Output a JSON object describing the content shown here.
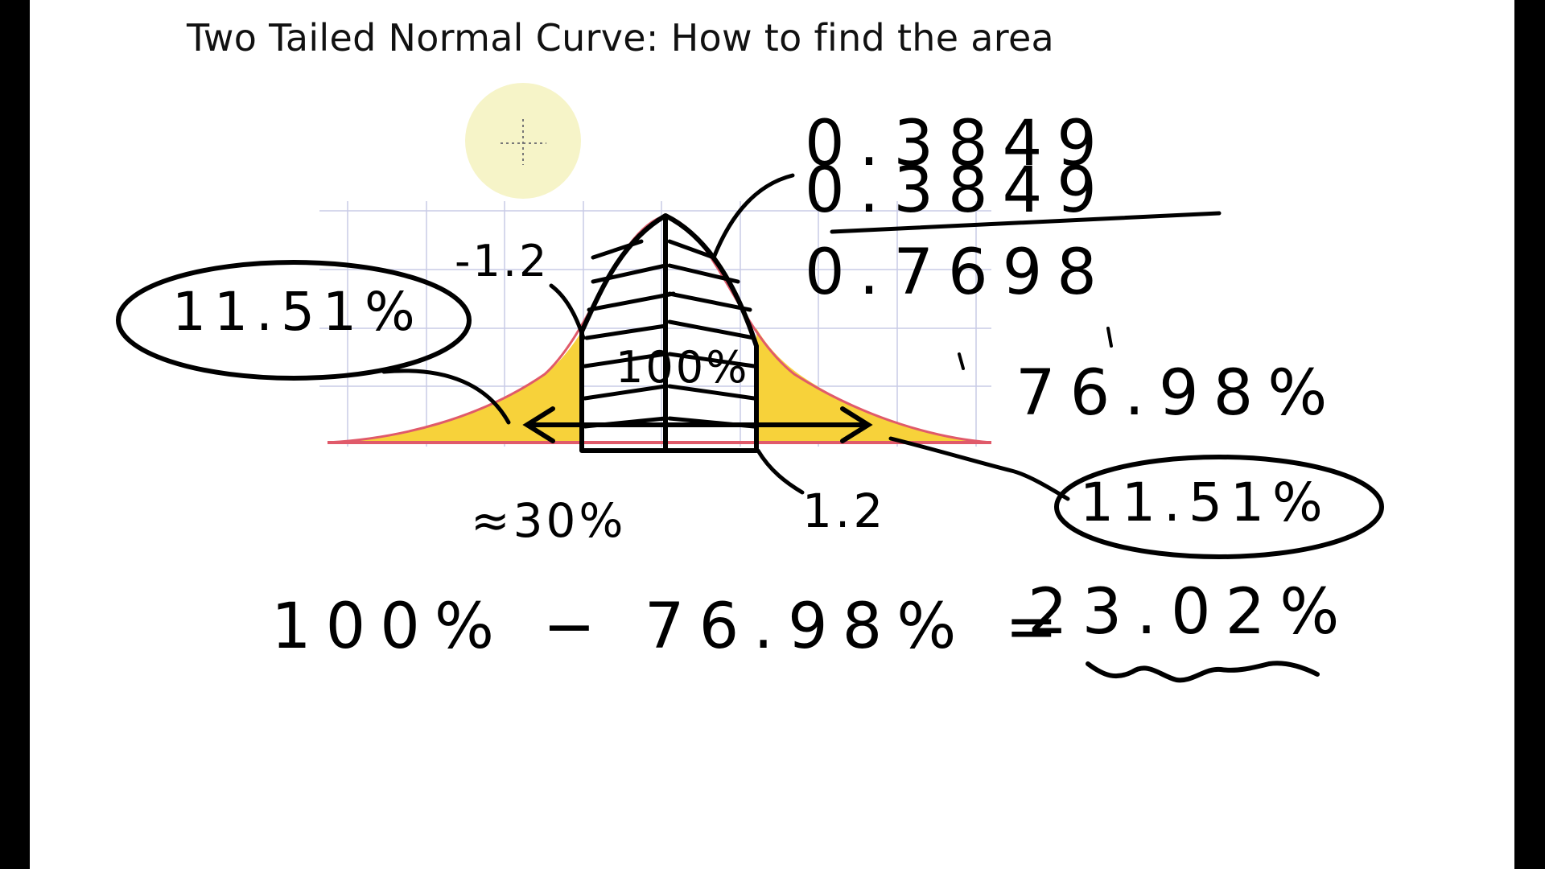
{
  "title": "Two Tailed Normal Curve: How to find the area",
  "colors": {
    "board": "#ffffff",
    "frame": "#000000",
    "ink": "#000000",
    "tail_fill": "#f7d23a",
    "curve_line": "#e05a6a",
    "grid": "#c9cbe6",
    "pointer_highlight": "#f6f4c8"
  },
  "cursor_icon": "crosshair-cursor-icon",
  "curve": {
    "left_z": "-1.2",
    "right_z": "1.2",
    "center_label": "100%",
    "left_tail": "11.51%",
    "right_tail": "11.51%",
    "approx_area": "≈30%"
  },
  "calculation": {
    "addend1": "0.3849",
    "addend2": "0.3849",
    "sum": "0.7698",
    "sum_percent": "76.98%"
  },
  "final_equation": {
    "lhs": "100% − 76.98% =",
    "result": "23.02%"
  }
}
